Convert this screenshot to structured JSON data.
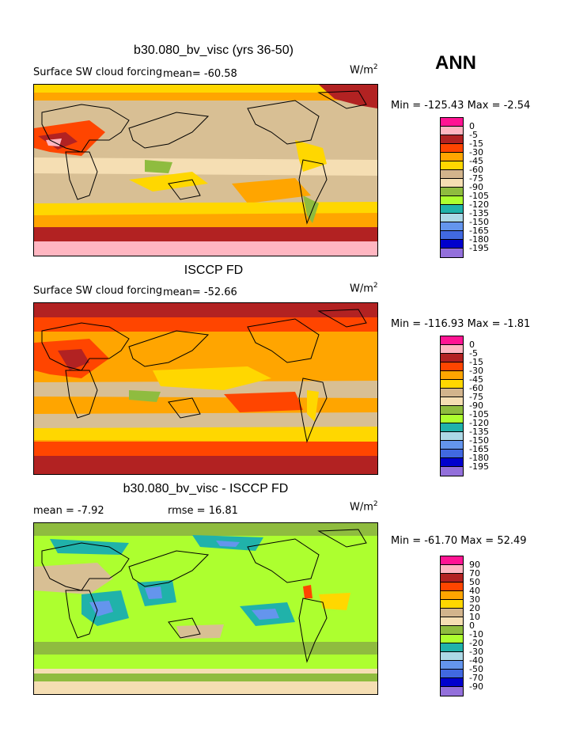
{
  "season": "ANN",
  "panels": [
    {
      "title": "b30.080_bv_visc (yrs 36-50)",
      "subtitle": "Surface SW cloud forcing",
      "mean_label": "mean=",
      "mean_value": "-60.58",
      "units_main": "W/m",
      "units_sup": "2",
      "min_label": "Min =",
      "min_value": "-125.43",
      "max_label": "Max =",
      "max_value": "-2.54",
      "legend": {
        "labels": [
          "0",
          "-5",
          "-15",
          "-30",
          "-45",
          "-60",
          "-75",
          "-90",
          "-105",
          "-120",
          "-135",
          "-150",
          "-165",
          "-180",
          "-195"
        ],
        "colors": [
          "#ff1493",
          "#ffb6c1",
          "#b22222",
          "#ff4500",
          "#ffa500",
          "#ffd700",
          "#d2b48c",
          "#f5deb3",
          "#8fbc3f",
          "#adff2f",
          "#20b2aa",
          "#add8e6",
          "#6495ed",
          "#4169e1",
          "#0000cd",
          "#9370db"
        ]
      }
    },
    {
      "title": "ISCCP FD",
      "subtitle": "Surface SW cloud forcing",
      "mean_label": "mean=",
      "mean_value": "-52.66",
      "units_main": "W/m",
      "units_sup": "2",
      "min_label": "Min =",
      "min_value": "-116.93",
      "max_label": "Max =",
      "max_value": "-1.81",
      "legend": {
        "labels": [
          "0",
          "-5",
          "-15",
          "-30",
          "-45",
          "-60",
          "-75",
          "-90",
          "-105",
          "-120",
          "-135",
          "-150",
          "-165",
          "-180",
          "-195"
        ],
        "colors": [
          "#ff1493",
          "#ffb6c1",
          "#b22222",
          "#ff4500",
          "#ffa500",
          "#ffd700",
          "#d2b48c",
          "#f5deb3",
          "#8fbc3f",
          "#adff2f",
          "#20b2aa",
          "#add8e6",
          "#6495ed",
          "#4169e1",
          "#0000cd",
          "#9370db"
        ]
      }
    },
    {
      "title": "b30.080_bv_visc - ISCCP FD",
      "subtitle": "",
      "mean_label": "mean =",
      "mean_value": "-7.92",
      "rmse_label": "rmse =",
      "rmse_value": "16.81",
      "units_main": "W/m",
      "units_sup": "2",
      "min_label": "Min =",
      "min_value": "-61.70",
      "max_label": "Max =",
      "max_value": "52.49",
      "legend": {
        "labels": [
          "90",
          "70",
          "50",
          "40",
          "30",
          "20",
          "10",
          "0",
          "-10",
          "-20",
          "-30",
          "-40",
          "-50",
          "-70",
          "-90"
        ],
        "colors": [
          "#ff1493",
          "#ffb6c1",
          "#b22222",
          "#ff4500",
          "#ffa500",
          "#ffd700",
          "#d2b48c",
          "#f5deb3",
          "#8fbc3f",
          "#adff2f",
          "#20b2aa",
          "#add8e6",
          "#6495ed",
          "#4169e1",
          "#0000cd",
          "#9370db"
        ]
      }
    }
  ],
  "chart_data": [
    {
      "type": "heatmap",
      "title": "b30.080_bv_visc (yrs 36-50)",
      "variable": "Surface SW cloud forcing",
      "units": "W/m2",
      "mean": -60.58,
      "min": -125.43,
      "max": -2.54,
      "contour_levels": [
        0,
        -5,
        -15,
        -30,
        -45,
        -60,
        -75,
        -90,
        -105,
        -120,
        -135,
        -150,
        -165,
        -180,
        -195
      ]
    },
    {
      "type": "heatmap",
      "title": "ISCCP FD",
      "variable": "Surface SW cloud forcing",
      "units": "W/m2",
      "mean": -52.66,
      "min": -116.93,
      "max": -1.81,
      "contour_levels": [
        0,
        -5,
        -15,
        -30,
        -45,
        -60,
        -75,
        -90,
        -105,
        -120,
        -135,
        -150,
        -165,
        -180,
        -195
      ]
    },
    {
      "type": "heatmap",
      "title": "b30.080_bv_visc - ISCCP FD",
      "units": "W/m2",
      "mean": -7.92,
      "rmse": 16.81,
      "min": -61.7,
      "max": 52.49,
      "contour_levels": [
        90,
        70,
        50,
        40,
        30,
        20,
        10,
        0,
        -10,
        -20,
        -30,
        -40,
        -50,
        -70,
        -90
      ]
    }
  ]
}
